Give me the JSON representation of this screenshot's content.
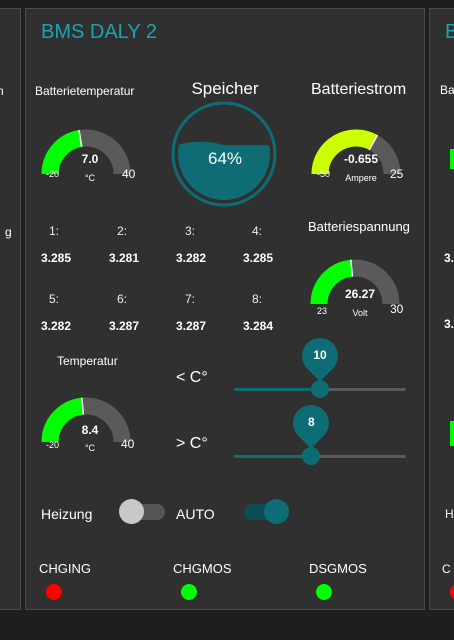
{
  "left_partial": {
    "labels": [
      "n",
      "g"
    ]
  },
  "right_partial": {
    "title_letter": "B",
    "labels": [
      "Ba",
      "3.",
      "3.",
      "H",
      "C"
    ]
  },
  "card": {
    "title": "BMS DALY 2",
    "battery_temp": {
      "label": "Batterietemperatur",
      "value": "7.0",
      "unit": "°C",
      "min": "-20",
      "max": "40",
      "fraction": 0.45
    },
    "storage": {
      "label": "Speicher",
      "percent": "64%",
      "level": 0.64
    },
    "battery_current": {
      "label": "Batteriestrom",
      "value": "-0.655",
      "unit": "Ampere",
      "min": "-50",
      "max": "25",
      "fraction": 0.66
    },
    "cells": [
      {
        "label": "1:",
        "value": "3.285"
      },
      {
        "label": "2:",
        "value": "3.281"
      },
      {
        "label": "3:",
        "value": "3.282"
      },
      {
        "label": "4:",
        "value": "3.285"
      },
      {
        "label": "5:",
        "value": "3.282"
      },
      {
        "label": "6:",
        "value": "3.287"
      },
      {
        "label": "7:",
        "value": "3.287"
      },
      {
        "label": "8:",
        "value": "3.284"
      }
    ],
    "battery_voltage": {
      "label": "Batteriespannung",
      "value": "26.27",
      "unit": "Volt",
      "min": "23",
      "max": "30",
      "fraction": 0.47
    },
    "temperature": {
      "label": "Temperatur",
      "value": "8.4",
      "unit": "°C",
      "min": "-20",
      "max": "40",
      "fraction": 0.47
    },
    "slider_low": {
      "label": "< C°",
      "value": "10",
      "fraction": 0.5
    },
    "slider_high": {
      "label": "> C°",
      "value": "8",
      "fraction": 0.45
    },
    "heating": {
      "label": "Heizung",
      "state": false
    },
    "auto": {
      "label": "AUTO",
      "state": true
    },
    "status": [
      {
        "label": "CHGING",
        "color": "#ff0000"
      },
      {
        "label": "CHGMOS",
        "color": "#00ff00"
      },
      {
        "label": "DSGMOS",
        "color": "#00ff00"
      }
    ]
  },
  "colors": {
    "accent": "#1aa3b1",
    "teal": "#0d6c74",
    "gauge_green": "#00ff00",
    "gauge_lime": "#ccff00",
    "gauge_bg": "#5a5a5a"
  }
}
